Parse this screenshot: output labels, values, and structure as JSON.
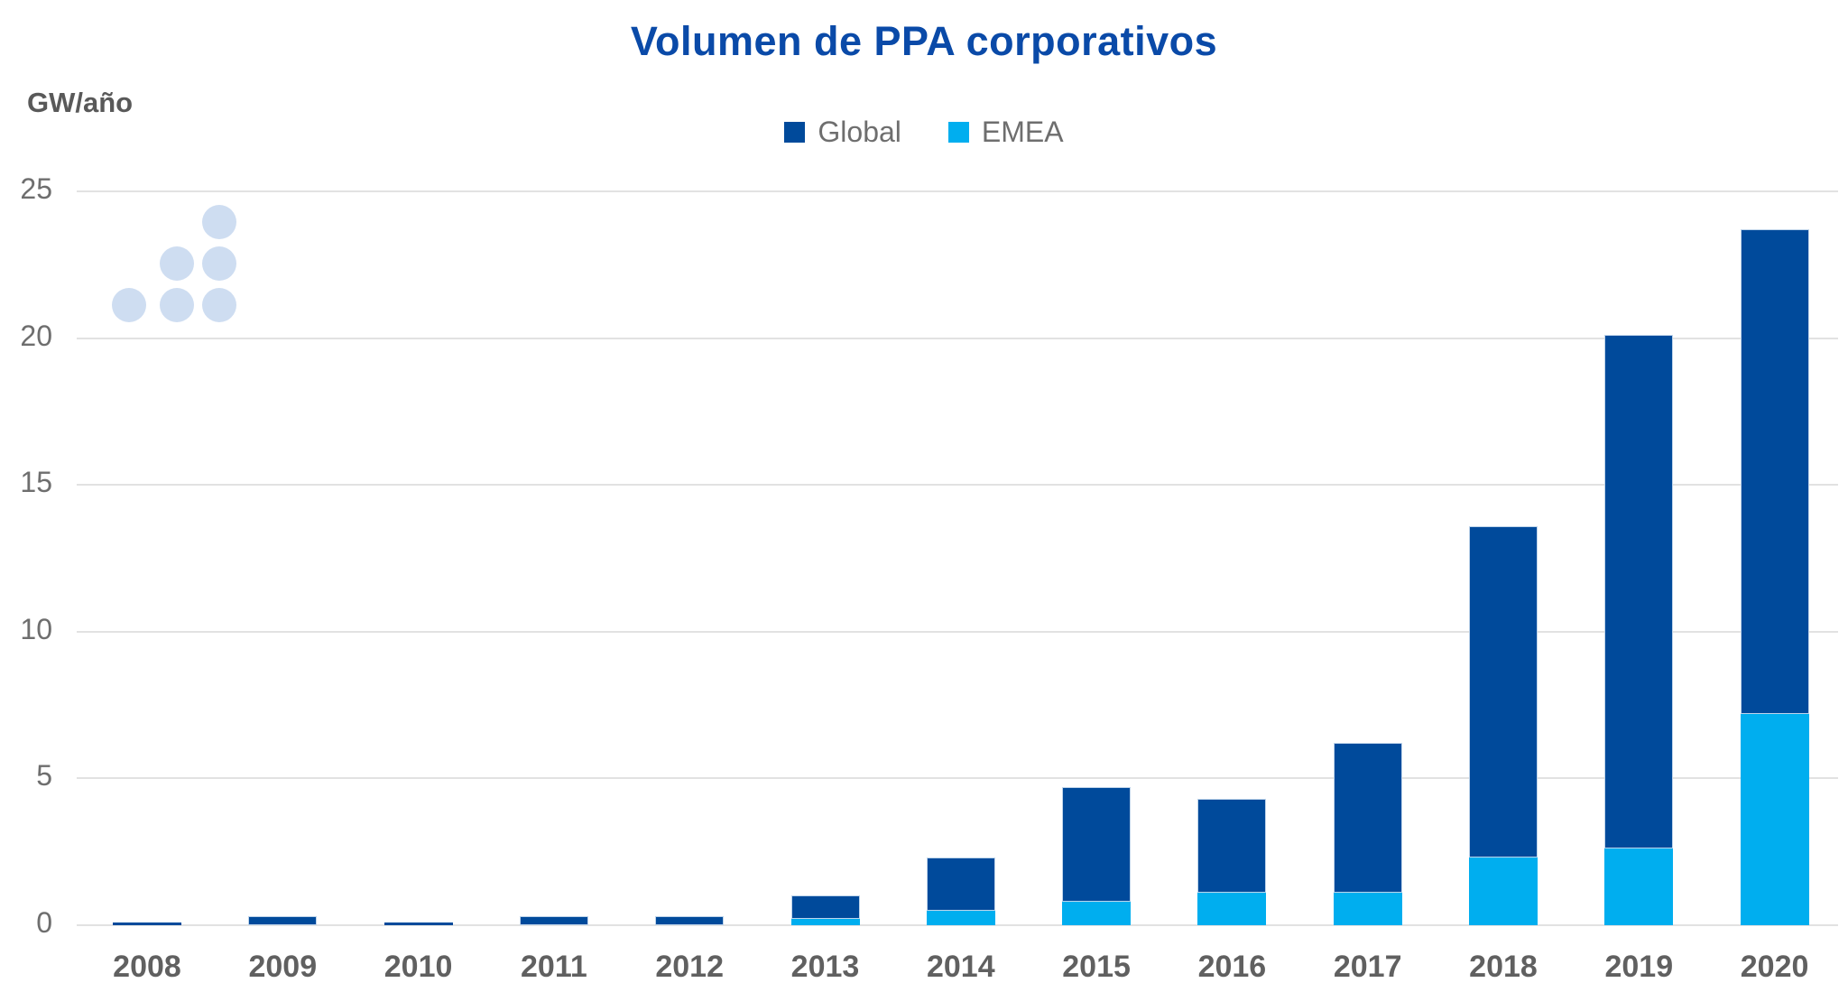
{
  "title": "Volumen de PPA corporativos",
  "y_axis_label": "GW/año",
  "legend": [
    {
      "label": "Global",
      "color": "#004A9B"
    },
    {
      "label": "EMEA",
      "color": "#00AEEF"
    }
  ],
  "colors": {
    "title": "#0A4AA8",
    "global_bar": "#004A9B",
    "emea_bar": "#00AEEF",
    "axis_text": "#6E6E6E",
    "x_label_text": "#606060",
    "gridline": "#E2E2E2",
    "decoration_dot": "#CEDDF1"
  },
  "chart_data": {
    "type": "bar",
    "stacked": true,
    "title": "Volumen de PPA corporativos",
    "ylabel": "GW/año",
    "categories": [
      "2008",
      "2009",
      "2010",
      "2011",
      "2012",
      "2013",
      "2014",
      "2015",
      "2016",
      "2017",
      "2018",
      "2019",
      "2020"
    ],
    "series": [
      {
        "name": "Global",
        "color": "#004A9B",
        "values": [
          0.1,
          0.3,
          0.1,
          0.3,
          0.3,
          1.0,
          2.3,
          4.7,
          4.3,
          6.2,
          13.6,
          20.1,
          23.7
        ]
      },
      {
        "name": "EMEA",
        "color": "#00AEEF",
        "values": [
          0,
          0,
          0,
          0,
          0,
          0.2,
          0.5,
          0.8,
          1.1,
          1.1,
          2.3,
          2.6,
          7.2
        ]
      }
    ],
    "emea_is_subset_of_global": true,
    "ylim": [
      0,
      25
    ],
    "yticks": [
      0,
      5,
      10,
      15,
      20,
      25
    ],
    "grid": true,
    "legend_position": "top-center"
  },
  "decoration": {
    "pattern": "triangle-of-6-dots",
    "dot_columns_x": [
      143,
      196,
      243
    ],
    "dot_rows_y": [
      246,
      292,
      338
    ]
  }
}
